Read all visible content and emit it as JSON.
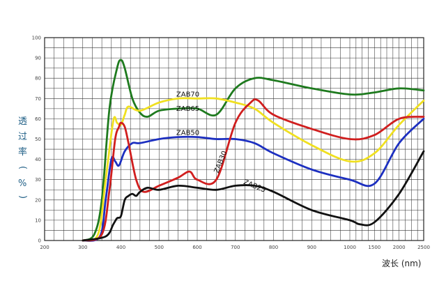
{
  "chart_data": {
    "type": "line",
    "title": "",
    "xlabel": "波长 (nm)",
    "ylabel_chars": [
      "透",
      "过",
      "率",
      "(",
      "%",
      ")"
    ],
    "x_tick_labels": [
      "200",
      "300",
      "400",
      "500",
      "600",
      "700",
      "800",
      "900",
      "1000",
      "1500",
      "2000",
      "2500"
    ],
    "y_ticks": [
      0,
      10,
      20,
      30,
      40,
      50,
      60,
      70,
      80,
      90,
      100
    ],
    "ylim": [
      0,
      100
    ],
    "grid": true,
    "series": [
      {
        "name": "ZAB70",
        "color": "#1e7a1e",
        "x": [
          300,
          330,
          350,
          370,
          390,
          400,
          410,
          430,
          450,
          470,
          500,
          550,
          600,
          650,
          700,
          750,
          800,
          900,
          1000,
          1500,
          2000,
          2500
        ],
        "y": [
          0,
          3,
          20,
          65,
          85,
          89,
          85,
          70,
          63,
          61,
          64,
          65,
          65,
          62,
          75,
          80,
          79,
          75,
          72,
          73,
          75,
          74
        ]
      },
      {
        "name": "ZAB65",
        "color": "#f0e020",
        "x": [
          300,
          340,
          360,
          380,
          390,
          400,
          410,
          420,
          450,
          500,
          550,
          600,
          650,
          700,
          750,
          800,
          900,
          1000,
          1500,
          2000,
          2500
        ],
        "y": [
          0,
          3,
          30,
          59,
          58,
          57,
          62,
          66,
          64,
          68,
          70,
          70,
          70,
          68,
          65,
          58,
          47,
          39,
          43,
          57,
          69
        ]
      },
      {
        "name": "ZAB50",
        "color": "#1c2fc0",
        "x": [
          300,
          345,
          360,
          375,
          385,
          395,
          410,
          430,
          450,
          500,
          550,
          600,
          650,
          700,
          750,
          800,
          900,
          1000,
          1500,
          2000,
          2500
        ],
        "y": [
          0,
          2,
          20,
          40,
          39,
          37,
          44,
          48,
          48,
          50,
          51,
          51,
          50,
          50,
          48,
          43,
          35,
          30,
          28,
          48,
          60
        ]
      },
      {
        "name": "ZAB30",
        "color": "#d01e1e",
        "x": [
          300,
          350,
          370,
          385,
          395,
          400,
          410,
          420,
          440,
          460,
          500,
          550,
          580,
          600,
          650,
          700,
          740,
          760,
          800,
          900,
          1000,
          1500,
          2000,
          2500
        ],
        "y": [
          0,
          3,
          25,
          50,
          56,
          58,
          56,
          48,
          30,
          24,
          27,
          31,
          34,
          30,
          30,
          58,
          68,
          69,
          62,
          55,
          50,
          52,
          60,
          61
        ]
      },
      {
        "name": "ZAB25",
        "color": "#111111",
        "x": [
          300,
          360,
          380,
          390,
          400,
          410,
          420,
          430,
          440,
          450,
          470,
          500,
          550,
          600,
          650,
          700,
          750,
          800,
          900,
          1000,
          1200,
          1500,
          2000,
          2500
        ],
        "y": [
          0,
          2,
          8,
          11,
          12,
          20,
          22,
          23,
          22,
          24,
          26,
          25,
          27,
          26,
          25,
          27,
          27,
          24,
          15,
          10,
          8,
          9,
          23,
          44
        ]
      }
    ]
  }
}
